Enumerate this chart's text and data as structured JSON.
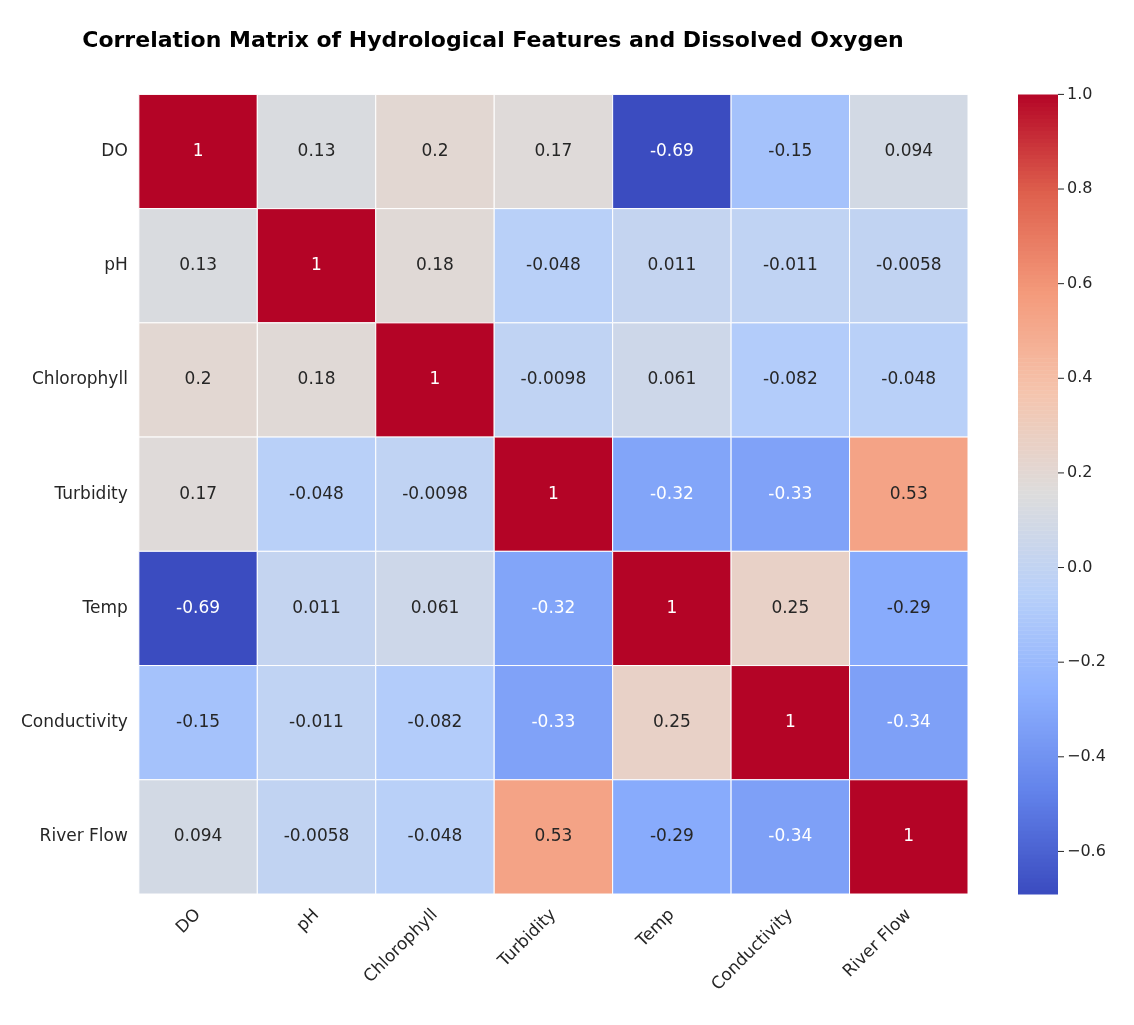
{
  "chart_data": {
    "type": "heatmap",
    "title": "Correlation Matrix of Hydrological Features and Dissolved Oxygen",
    "categories": [
      "DO",
      "pH",
      "Chlorophyll",
      "Turbidity",
      "Temp",
      "Conductivity",
      "River Flow"
    ],
    "y_categories": [
      "DO",
      "pH",
      "Chlorophyll",
      "Turbidity",
      "Temp",
      "Conductivity",
      "River Flow"
    ],
    "cells": [
      [
        1,
        0.13,
        0.2,
        0.17,
        -0.69,
        -0.15,
        0.094
      ],
      [
        0.13,
        1,
        0.18,
        -0.048,
        0.011,
        -0.011,
        -0.0058
      ],
      [
        0.2,
        0.18,
        1,
        -0.0098,
        0.061,
        -0.082,
        -0.048
      ],
      [
        0.17,
        -0.048,
        -0.0098,
        1,
        -0.32,
        -0.33,
        0.53
      ],
      [
        -0.69,
        0.011,
        0.061,
        -0.32,
        1,
        0.25,
        -0.29
      ],
      [
        -0.15,
        -0.011,
        -0.082,
        -0.33,
        0.25,
        1,
        -0.34
      ],
      [
        0.094,
        -0.0058,
        -0.048,
        0.53,
        -0.29,
        -0.34,
        1
      ]
    ],
    "clim": [
      -0.69,
      1
    ],
    "cticks": [
      {
        "value": -0.6,
        "label": "−0.6"
      },
      {
        "value": -0.4,
        "label": "−0.4"
      },
      {
        "value": -0.2,
        "label": "−0.2"
      },
      {
        "value": 0,
        "label": "0.0"
      },
      {
        "value": 0.2,
        "label": "0.2"
      },
      {
        "value": 0.4,
        "label": "0.4"
      },
      {
        "value": 0.6,
        "label": "0.6"
      },
      {
        "value": 0.8,
        "label": "0.8"
      },
      {
        "value": 1,
        "label": "1.0"
      }
    ],
    "data_labels": true
  }
}
